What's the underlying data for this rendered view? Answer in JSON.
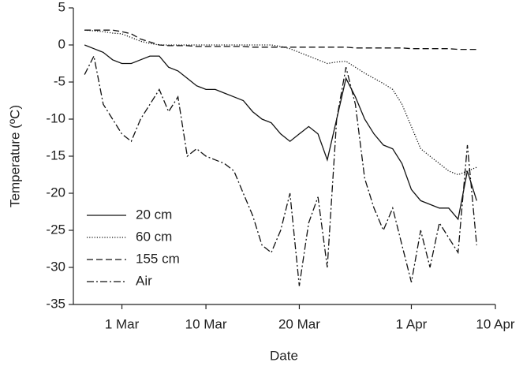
{
  "chart_data": {
    "type": "line",
    "x_label": "Date",
    "y_label": "Temperature (ºC)",
    "x": [
      -4,
      -3,
      -2,
      -1,
      0,
      1,
      2,
      3,
      4,
      5,
      6,
      7,
      8,
      9,
      10,
      11,
      12,
      13,
      14,
      15,
      16,
      17,
      18,
      19,
      20,
      21,
      22,
      23,
      24,
      25,
      26,
      27,
      28,
      29,
      30,
      31,
      32,
      33,
      34,
      35,
      36,
      37,
      38
    ],
    "series": [
      {
        "name": "20 cm",
        "color": "#111111",
        "style": "solid",
        "values": [
          0,
          -0.5,
          -1,
          -2,
          -2.5,
          -2.5,
          -2,
          -1.5,
          -1.5,
          -3,
          -3.5,
          -4.5,
          -5.5,
          -6,
          -6,
          -6.5,
          -7,
          -7.5,
          -9,
          -10,
          -10.5,
          -12,
          -13,
          -12,
          -11,
          -12,
          -15.5,
          -10,
          -4.5,
          -7,
          -10,
          -12,
          -13.5,
          -14,
          -16,
          -19.5,
          -21,
          -21.5,
          -22,
          -22,
          -23.5,
          -17,
          -21
        ]
      },
      {
        "name": "60 cm",
        "color": "#111111",
        "style": "dotted",
        "values": [
          2,
          1.9,
          1.8,
          1.6,
          1.5,
          1,
          0.5,
          0.2,
          0,
          0,
          0,
          0,
          0,
          0,
          0,
          0,
          0,
          0,
          0,
          0,
          0,
          -0.2,
          -0.5,
          -1,
          -1.5,
          -2,
          -2.5,
          -2.3,
          -2.2,
          -3,
          -3.8,
          -4.5,
          -5.2,
          -6,
          -8,
          -11,
          -14,
          -15,
          -16,
          -17,
          -17.5,
          -17,
          -16.5
        ]
      },
      {
        "name": "155 cm",
        "color": "#111111",
        "style": "dashed",
        "values": [
          2,
          2,
          2,
          2,
          1.8,
          1.5,
          0.8,
          0.4,
          0,
          -0.1,
          -0.1,
          -0.1,
          -0.2,
          -0.2,
          -0.2,
          -0.2,
          -0.2,
          -0.2,
          -0.3,
          -0.3,
          -0.3,
          -0.3,
          -0.3,
          -0.3,
          -0.3,
          -0.3,
          -0.3,
          -0.3,
          -0.3,
          -0.4,
          -0.4,
          -0.4,
          -0.4,
          -0.4,
          -0.4,
          -0.5,
          -0.5,
          -0.5,
          -0.5,
          -0.5,
          -0.6,
          -0.6,
          -0.6
        ]
      },
      {
        "name": "Air",
        "color": "#111111",
        "style": "dashdot",
        "values": [
          -4,
          -1.5,
          -8,
          -10,
          -12,
          -13,
          -10,
          -8,
          -6,
          -9,
          -7,
          -15,
          -14,
          -15,
          -15.5,
          -16,
          -17,
          -20,
          -23,
          -27,
          -28,
          -25,
          -20,
          -32.5,
          -24,
          -20.5,
          -30,
          -10,
          -3,
          -8,
          -18,
          -22,
          -25,
          -22,
          -27,
          -32,
          -25,
          -30,
          -24,
          -26,
          -28,
          -13.5,
          -27
        ]
      }
    ],
    "xlim": [
      -5.2,
      40
    ],
    "xticks": [
      {
        "value": 0,
        "label": "1 Mar"
      },
      {
        "value": 9,
        "label": "10 Mar"
      },
      {
        "value": 19,
        "label": "20 Mar"
      },
      {
        "value": 31,
        "label": "1 Apr"
      },
      {
        "value": 40,
        "label": "10 Apr"
      }
    ],
    "ylim": [
      -35,
      5
    ],
    "yticks": [
      -35,
      -30,
      -25,
      -20,
      -15,
      -10,
      -5,
      0,
      5
    ],
    "grid": false,
    "legend": "lower left"
  }
}
